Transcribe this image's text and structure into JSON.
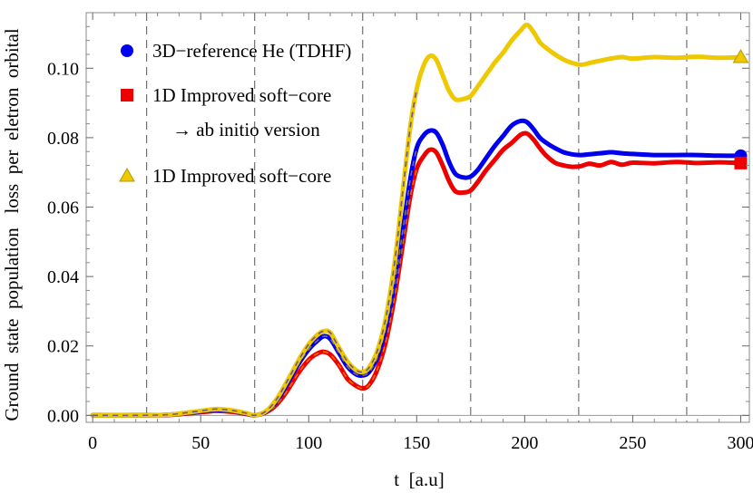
{
  "chart_data": {
    "type": "line",
    "title": "",
    "xlabel": "t  [a.u]",
    "ylabel": "Ground  state  population   loss  per  eletron  orbital",
    "xlim": [
      -3,
      304
    ],
    "ylim": [
      -0.002,
      0.116
    ],
    "xticks": [
      0,
      50,
      100,
      150,
      200,
      250,
      300
    ],
    "xtick_labels": [
      "0",
      "50",
      "100",
      "150",
      "200",
      "250",
      "300"
    ],
    "yticks": [
      0.0,
      0.02,
      0.04,
      0.06,
      0.08,
      0.1
    ],
    "ytick_labels": [
      "0.00",
      "0.02",
      "0.04",
      "0.06",
      "0.08",
      "0.10"
    ],
    "vlines": [
      25,
      75,
      125,
      175,
      225,
      275
    ],
    "legend_position": "top-left",
    "series": [
      {
        "name": "3D−reference He (TDHF)",
        "name2": "",
        "color": "#0000ee",
        "marker": "circle",
        "dashed_until": 150,
        "x": [
          0,
          20,
          35,
          45,
          55,
          58,
          65,
          72,
          75,
          80,
          85,
          90,
          95,
          100,
          104,
          107,
          110,
          114,
          118,
          122,
          125,
          128,
          132,
          136,
          140,
          144,
          147,
          150,
          153,
          156,
          159,
          162,
          165,
          168,
          172,
          175,
          178,
          182,
          186,
          190,
          194,
          198,
          201,
          204,
          207,
          210,
          214,
          218,
          222,
          226,
          230,
          235,
          240,
          245,
          250,
          260,
          270,
          280,
          290,
          300
        ],
        "y": [
          0.0,
          0.0,
          0.0002,
          0.0008,
          0.0015,
          0.0016,
          0.0013,
          0.0004,
          0.0,
          0.001,
          0.004,
          0.009,
          0.0145,
          0.019,
          0.0215,
          0.0228,
          0.022,
          0.018,
          0.014,
          0.0118,
          0.0115,
          0.0125,
          0.017,
          0.026,
          0.039,
          0.055,
          0.068,
          0.077,
          0.0805,
          0.082,
          0.0815,
          0.078,
          0.073,
          0.0695,
          0.0685,
          0.0688,
          0.0705,
          0.074,
          0.0775,
          0.0805,
          0.0835,
          0.0848,
          0.0845,
          0.0825,
          0.08,
          0.0785,
          0.077,
          0.0758,
          0.0752,
          0.075,
          0.0752,
          0.0755,
          0.0758,
          0.0755,
          0.0753,
          0.075,
          0.075,
          0.075,
          0.0748,
          0.0748
        ]
      },
      {
        "name": "1D Improved soft−core",
        "name2": "→ ab initio version",
        "color": "#ee0000",
        "marker": "square",
        "dashed_until": 150,
        "x": [
          0,
          20,
          35,
          45,
          55,
          58,
          65,
          72,
          75,
          80,
          85,
          90,
          95,
          100,
          104,
          107,
          110,
          114,
          118,
          122,
          125,
          128,
          132,
          136,
          140,
          144,
          147,
          150,
          153,
          156,
          159,
          162,
          165,
          168,
          172,
          175,
          178,
          182,
          186,
          190,
          194,
          198,
          201,
          204,
          207,
          210,
          214,
          218,
          222,
          226,
          230,
          235,
          240,
          245,
          250,
          260,
          270,
          280,
          290,
          300
        ],
        "y": [
          0.0,
          0.0,
          0.0001,
          0.0006,
          0.0012,
          0.0013,
          0.001,
          0.0003,
          0.0,
          0.0008,
          0.003,
          0.007,
          0.012,
          0.016,
          0.0178,
          0.0183,
          0.0175,
          0.0145,
          0.0105,
          0.0085,
          0.0078,
          0.0088,
          0.0135,
          0.022,
          0.035,
          0.051,
          0.063,
          0.071,
          0.0745,
          0.0765,
          0.0758,
          0.072,
          0.0675,
          0.0645,
          0.0642,
          0.0648,
          0.067,
          0.0705,
          0.0735,
          0.0765,
          0.0785,
          0.0808,
          0.0812,
          0.0795,
          0.077,
          0.0748,
          0.0728,
          0.072,
          0.0716,
          0.0718,
          0.0725,
          0.072,
          0.073,
          0.0722,
          0.0728,
          0.0726,
          0.073,
          0.0727,
          0.0729,
          0.0727
        ]
      },
      {
        "name": "1D Improved soft−core",
        "name2": "",
        "color": "#eec800",
        "marker": "triangle",
        "dashed_until": 150,
        "x": [
          0,
          20,
          35,
          45,
          55,
          58,
          65,
          72,
          75,
          80,
          85,
          90,
          95,
          100,
          104,
          107,
          110,
          114,
          118,
          122,
          125,
          128,
          132,
          136,
          140,
          144,
          147,
          150,
          153,
          156,
          159,
          162,
          165,
          168,
          172,
          175,
          178,
          182,
          186,
          190,
          194,
          198,
          201,
          204,
          207,
          210,
          214,
          218,
          222,
          226,
          230,
          235,
          240,
          245,
          250,
          260,
          270,
          280,
          290,
          300
        ],
        "y": [
          0.0,
          0.0,
          0.0002,
          0.0009,
          0.0017,
          0.0018,
          0.0014,
          0.0005,
          0.0,
          0.0011,
          0.0045,
          0.0098,
          0.0155,
          0.0205,
          0.0232,
          0.0243,
          0.0238,
          0.0195,
          0.0155,
          0.013,
          0.0125,
          0.0138,
          0.019,
          0.029,
          0.045,
          0.067,
          0.083,
          0.094,
          0.1005,
          0.1035,
          0.1025,
          0.098,
          0.0935,
          0.091,
          0.0912,
          0.092,
          0.0945,
          0.098,
          0.1015,
          0.1045,
          0.108,
          0.1108,
          0.1125,
          0.1105,
          0.1075,
          0.1058,
          0.104,
          0.1025,
          0.1015,
          0.101,
          0.1015,
          0.1022,
          0.1028,
          0.1032,
          0.1028,
          0.1032,
          0.103,
          0.1033,
          0.103,
          0.1032
        ]
      }
    ]
  }
}
